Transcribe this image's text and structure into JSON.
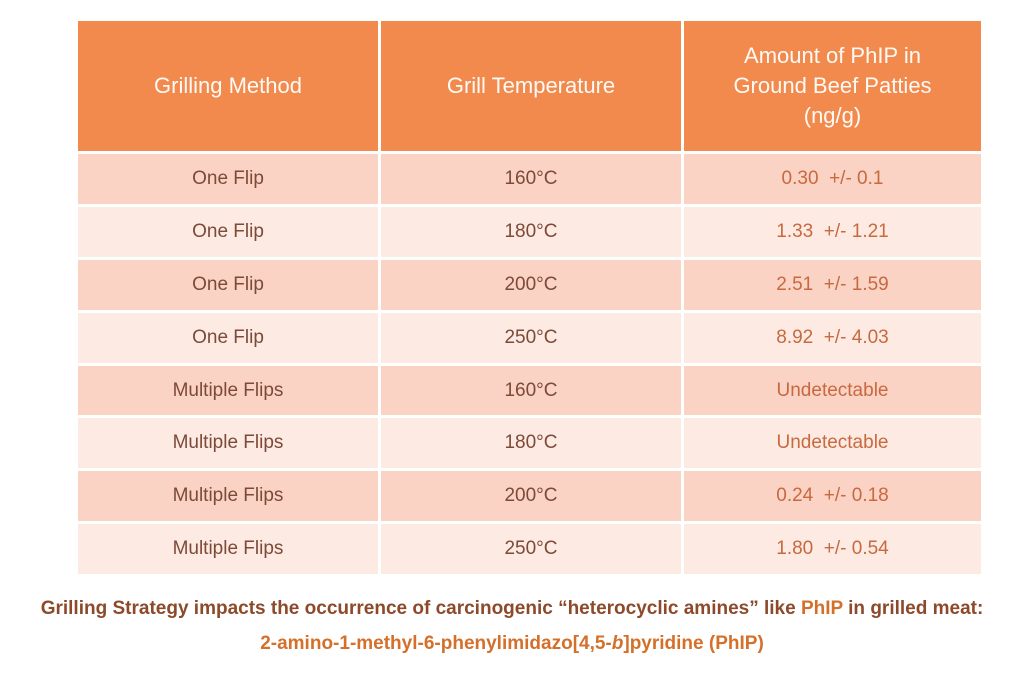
{
  "chart_data": {
    "type": "table",
    "columns": [
      "Grilling Method",
      "Grill Temperature",
      "Amount of PhIP in Ground Beef Patties (ng/g)"
    ],
    "rows": [
      [
        "One Flip",
        "160°C",
        "0.30 +/- 0.1"
      ],
      [
        "One Flip",
        "180°C",
        "1.33 +/- 1.21"
      ],
      [
        "One Flip",
        "200°C",
        "2.51 +/- 1.59"
      ],
      [
        "One Flip",
        "250°C",
        "8.92 +/- 4.03"
      ],
      [
        "Multiple Flips",
        "160°C",
        "Undetectable"
      ],
      [
        "Multiple Flips",
        "180°C",
        "Undetectable"
      ],
      [
        "Multiple Flips",
        "200°C",
        "0.24 +/- 0.18"
      ],
      [
        "Multiple Flips",
        "250°C",
        "1.80 +/- 0.54"
      ]
    ],
    "caption": "Grilling Strategy impacts the occurrence of carcinogenic “heterocyclic amines” like PhIP in grilled meat: 2-amino-1-methyl-6-phenylimidazo[4,5-b]pyridine (PhIP)"
  },
  "table": {
    "headers": {
      "method": "Grilling Method",
      "temperature": "Grill Temperature",
      "amount": "Amount of PhIP in\nGround Beef Patties\n(ng/g)"
    },
    "rows": [
      {
        "method": "One Flip",
        "temperature": "160°C",
        "amount": "0.30  +/- 0.1"
      },
      {
        "method": "One Flip",
        "temperature": "180°C",
        "amount": "1.33  +/- 1.21"
      },
      {
        "method": "One Flip",
        "temperature": "200°C",
        "amount": "2.51  +/- 1.59"
      },
      {
        "method": "One Flip",
        "temperature": "250°C",
        "amount": "8.92  +/- 4.03"
      },
      {
        "method": "Multiple Flips",
        "temperature": "160°C",
        "amount": "Undetectable"
      },
      {
        "method": "Multiple Flips",
        "temperature": "180°C",
        "amount": "Undetectable"
      },
      {
        "method": "Multiple Flips",
        "temperature": "200°C",
        "amount": "0.24  +/- 0.18"
      },
      {
        "method": "Multiple Flips",
        "temperature": "250°C",
        "amount": "1.80  +/- 0.54"
      }
    ]
  },
  "caption": {
    "line1_prefix": "Grilling Strategy impacts the occurrence of carcinogenic “heterocyclic amines” like ",
    "line1_highlight": "PhIP",
    "line1_suffix": " in grilled meat:",
    "line2_pre": "2-amino-1-methyl-6-phenylimidazo[4,5-",
    "line2_italic": "b",
    "line2_post": "]pyridine (PhIP)"
  },
  "colors": {
    "header_bg": "#F28A4E",
    "header_text": "#FDFAF6",
    "row_alt_dark": "#FAD3C4",
    "row_alt_light": "#FCEAE3",
    "body_text": "#7D4A38",
    "value_text": "#C8693F",
    "caption_brown": "#8C4A2B",
    "caption_orange": "#D4702A"
  }
}
